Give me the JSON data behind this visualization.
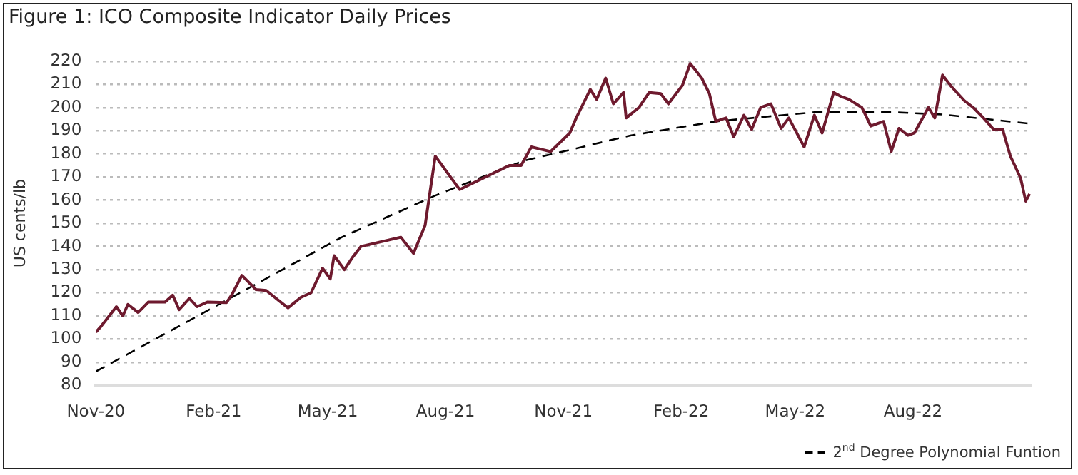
{
  "chart_data": {
    "type": "line",
    "title": "Figure 1: ICO Composite Indicator Daily Prices",
    "ylabel": "US cents/lb",
    "xlim": [
      "2020-11-01",
      "2022-11-01"
    ],
    "ylim": [
      80,
      220
    ],
    "yticks": [
      80,
      90,
      100,
      110,
      120,
      130,
      140,
      150,
      160,
      170,
      180,
      190,
      200,
      210,
      220
    ],
    "xticks": [
      {
        "value": "2020-11-01",
        "label": "Nov-20"
      },
      {
        "value": "2021-02-01",
        "label": "Feb-21"
      },
      {
        "value": "2021-05-01",
        "label": "May-21"
      },
      {
        "value": "2021-08-01",
        "label": "Aug-21"
      },
      {
        "value": "2021-11-01",
        "label": "Nov-21"
      },
      {
        "value": "2022-02-01",
        "label": "Feb-22"
      },
      {
        "value": "2022-05-01",
        "label": "May-22"
      },
      {
        "value": "2022-08-01",
        "label": "Aug-22"
      }
    ],
    "grid": "y",
    "legend": "bottom right",
    "marker": "none",
    "series": [
      {
        "color": "#6e1a2e",
        "line_style": "solid",
        "x": [
          "2020-11-01",
          "2020-11-05",
          "2020-11-17",
          "2020-11-22",
          "2020-11-26",
          "2020-12-04",
          "2020-12-12",
          "2020-12-25",
          "2020-12-31",
          "2021-01-05",
          "2021-01-13",
          "2021-01-19",
          "2021-01-27",
          "2021-02-11",
          "2021-02-15",
          "2021-02-23",
          "2021-03-06",
          "2021-03-14",
          "2021-03-23",
          "2021-03-31",
          "2021-04-10",
          "2021-04-18",
          "2021-04-27",
          "2021-05-03",
          "2021-05-06",
          "2021-05-14",
          "2021-05-20",
          "2021-05-27",
          "2021-06-27",
          "2021-07-07",
          "2021-07-16",
          "2021-07-24",
          "2021-08-12",
          "2021-09-20",
          "2021-09-29",
          "2021-10-07",
          "2021-10-22",
          "2021-11-06",
          "2021-11-11",
          "2021-11-22",
          "2021-11-27",
          "2021-12-04",
          "2021-12-10",
          "2021-12-18",
          "2021-12-20",
          "2021-12-30",
          "2022-01-07",
          "2022-01-16",
          "2022-01-22",
          "2022-02-02",
          "2022-02-08",
          "2022-02-17",
          "2022-02-23",
          "2022-02-28",
          "2022-03-08",
          "2022-03-14",
          "2022-03-22",
          "2022-03-28",
          "2022-04-04",
          "2022-04-12",
          "2022-04-20",
          "2022-04-26",
          "2022-05-08",
          "2022-05-16",
          "2022-05-22",
          "2022-05-31",
          "2022-06-06",
          "2022-06-12",
          "2022-06-22",
          "2022-06-29",
          "2022-07-09",
          "2022-07-15",
          "2022-07-21",
          "2022-07-28",
          "2022-08-02",
          "2022-08-13",
          "2022-08-18",
          "2022-08-24",
          "2022-08-31",
          "2022-09-10",
          "2022-09-17",
          "2022-09-25",
          "2022-10-03",
          "2022-10-10",
          "2022-10-16",
          "2022-10-24",
          "2022-10-28",
          "2022-10-31"
        ],
        "values": [
          103,
          105.5,
          114,
          110,
          115,
          111.5,
          116,
          116,
          119,
          112.7,
          117.6,
          114,
          116,
          115.8,
          119,
          127.5,
          121.4,
          121,
          117,
          113.5,
          118,
          120,
          130.6,
          126,
          136,
          130,
          135,
          140,
          144,
          137,
          149,
          179,
          164.6,
          175,
          175,
          183,
          181,
          189,
          195.5,
          207.8,
          203.5,
          212.7,
          201.6,
          206.5,
          195.5,
          200,
          206.5,
          206,
          201.6,
          209.6,
          219,
          212.7,
          206,
          194,
          195.5,
          187.4,
          196.7,
          190.5,
          200,
          201.6,
          191,
          195.5,
          183,
          196.7,
          189,
          206.5,
          204.7,
          203.5,
          200,
          192,
          194,
          181,
          191,
          188,
          189,
          200,
          195.5,
          214,
          209,
          203,
          200,
          195.5,
          190.5,
          190.5,
          179,
          169.5,
          159.6,
          162.7
        ]
      },
      {
        "name": "2$^{nd}$ Degree Polynomial Funtion",
        "color": "#000000",
        "line_style": "dashed",
        "x": [
          "2020-11-01",
          "2021-02-05",
          "2021-05-12",
          "2021-07-24",
          "2021-10-01",
          "2021-12-24",
          "2022-02-28",
          "2022-05-16",
          "2022-07-16",
          "2022-08-24",
          "2022-11-01"
        ],
        "values": [
          86,
          115,
          144,
          162,
          177,
          188,
          194,
          198,
          198,
          197,
          193
        ]
      }
    ]
  }
}
